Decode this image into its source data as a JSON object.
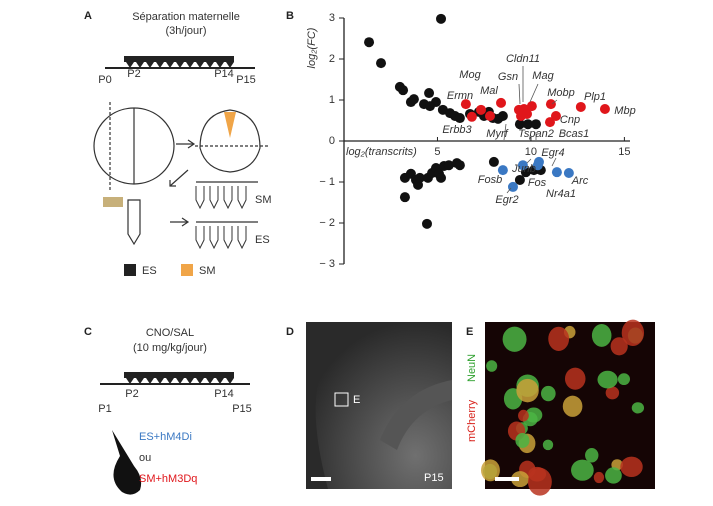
{
  "panels": {
    "A": {
      "letter": "A",
      "title": "Séparation maternelle",
      "subtitle": "(3h/jour)",
      "timeline": [
        "P0",
        "P2",
        "P14",
        "P15"
      ],
      "tube_labels": [
        "SM",
        "ES"
      ],
      "legend": [
        "ES",
        "SM"
      ]
    },
    "B": {
      "letter": "B"
    },
    "C": {
      "letter": "C",
      "title": "CNO/SAL",
      "subtitle": "(10 mg/kg/jour)",
      "timeline": [
        "P1",
        "P2",
        "P14",
        "P15"
      ],
      "groups": [
        "ES+hM4Di",
        "ou",
        "SM+hM3Dq"
      ]
    },
    "D": {
      "letter": "D",
      "inset": "E",
      "age": "P15"
    },
    "E": {
      "letter": "E",
      "stains": [
        "mCherry",
        "NeuN"
      ]
    }
  },
  "chart_data": {
    "type": "scatter",
    "x_label": "log₂(transcrits)",
    "y_label": "log₂(FC)",
    "xlim": [
      0,
      15.3
    ],
    "ylim": [
      -3,
      3
    ],
    "xticks": [
      5,
      10,
      15
    ],
    "yticks": [
      {
        "value": -3,
        "label": "− 3"
      },
      {
        "value": -2,
        "label": "− 2"
      },
      {
        "value": -1,
        "label": "− 1"
      },
      0,
      1,
      2,
      3
    ],
    "series": [
      {
        "color": "#111111",
        "x": [
          1.34,
          1.98,
          5.19,
          2.99,
          3.16,
          3.58,
          3.74,
          4.28,
          4.55,
          4.92,
          4.6,
          5.29,
          5.67,
          5.94,
          6.2,
          6.74,
          7.22,
          7.49,
          7.75,
          7.97,
          8.24,
          8.5,
          9.41,
          9.84,
          10.27,
          3.26,
          3.58,
          3.85,
          3.96,
          3.26,
          4.06,
          4.49,
          4.71,
          4.92,
          5.08,
          5.19,
          5.35,
          5.61,
          6.04,
          6.2,
          4.44,
          8.02,
          9.41,
          9.73,
          10.16,
          10.53
        ],
        "values": [
          2.41,
          1.9,
          2.98,
          1.32,
          1.24,
          0.95,
          1.02,
          0.9,
          1.17,
          0.95,
          0.85,
          0.76,
          0.68,
          0.61,
          0.56,
          0.66,
          0.71,
          0.61,
          0.71,
          0.56,
          0.54,
          0.61,
          0.41,
          0.41,
          0.41,
          -0.9,
          -0.8,
          -0.95,
          -1.07,
          -1.37,
          -0.9,
          -0.9,
          -0.78,
          -0.66,
          -0.8,
          -0.9,
          -0.61,
          -0.59,
          -0.54,
          -0.59,
          -2.02,
          -0.51,
          -0.95,
          -0.76,
          -0.71,
          -0.71
        ]
      },
      {
        "color": "#e0161b",
        "x": [
          6.52,
          6.84,
          7.33,
          7.81,
          8.4,
          9.36,
          9.63,
          9.47,
          9.79,
          10.05,
          11.07,
          11.02,
          11.34,
          12.67,
          13.96
        ],
        "values": [
          0.9,
          0.59,
          0.76,
          0.61,
          0.93,
          0.76,
          0.78,
          0.61,
          0.66,
          0.85,
          0.9,
          0.46,
          0.61,
          0.83,
          0.78
        ]
      },
      {
        "color": "#3a78c3",
        "x": [
          8.5,
          9.57,
          10.37,
          10.43,
          9.04,
          11.39,
          12.03
        ],
        "values": [
          -0.71,
          -0.59,
          -0.59,
          -0.51,
          -1.12,
          -0.76,
          -0.78
        ]
      }
    ],
    "annotations": [
      "Cldn11",
      "Mog",
      "Gsn",
      "Mag",
      "Mal",
      "Ermn",
      "Mobp",
      "Plp1",
      "Mbp",
      "Erbb3",
      "Myrf",
      "Tspan2",
      "Cnp",
      "Bcas1",
      "Egr4",
      "Junb",
      "Fosb",
      "Fos",
      "Arc",
      "Nr4a1",
      "Egr2"
    ]
  }
}
